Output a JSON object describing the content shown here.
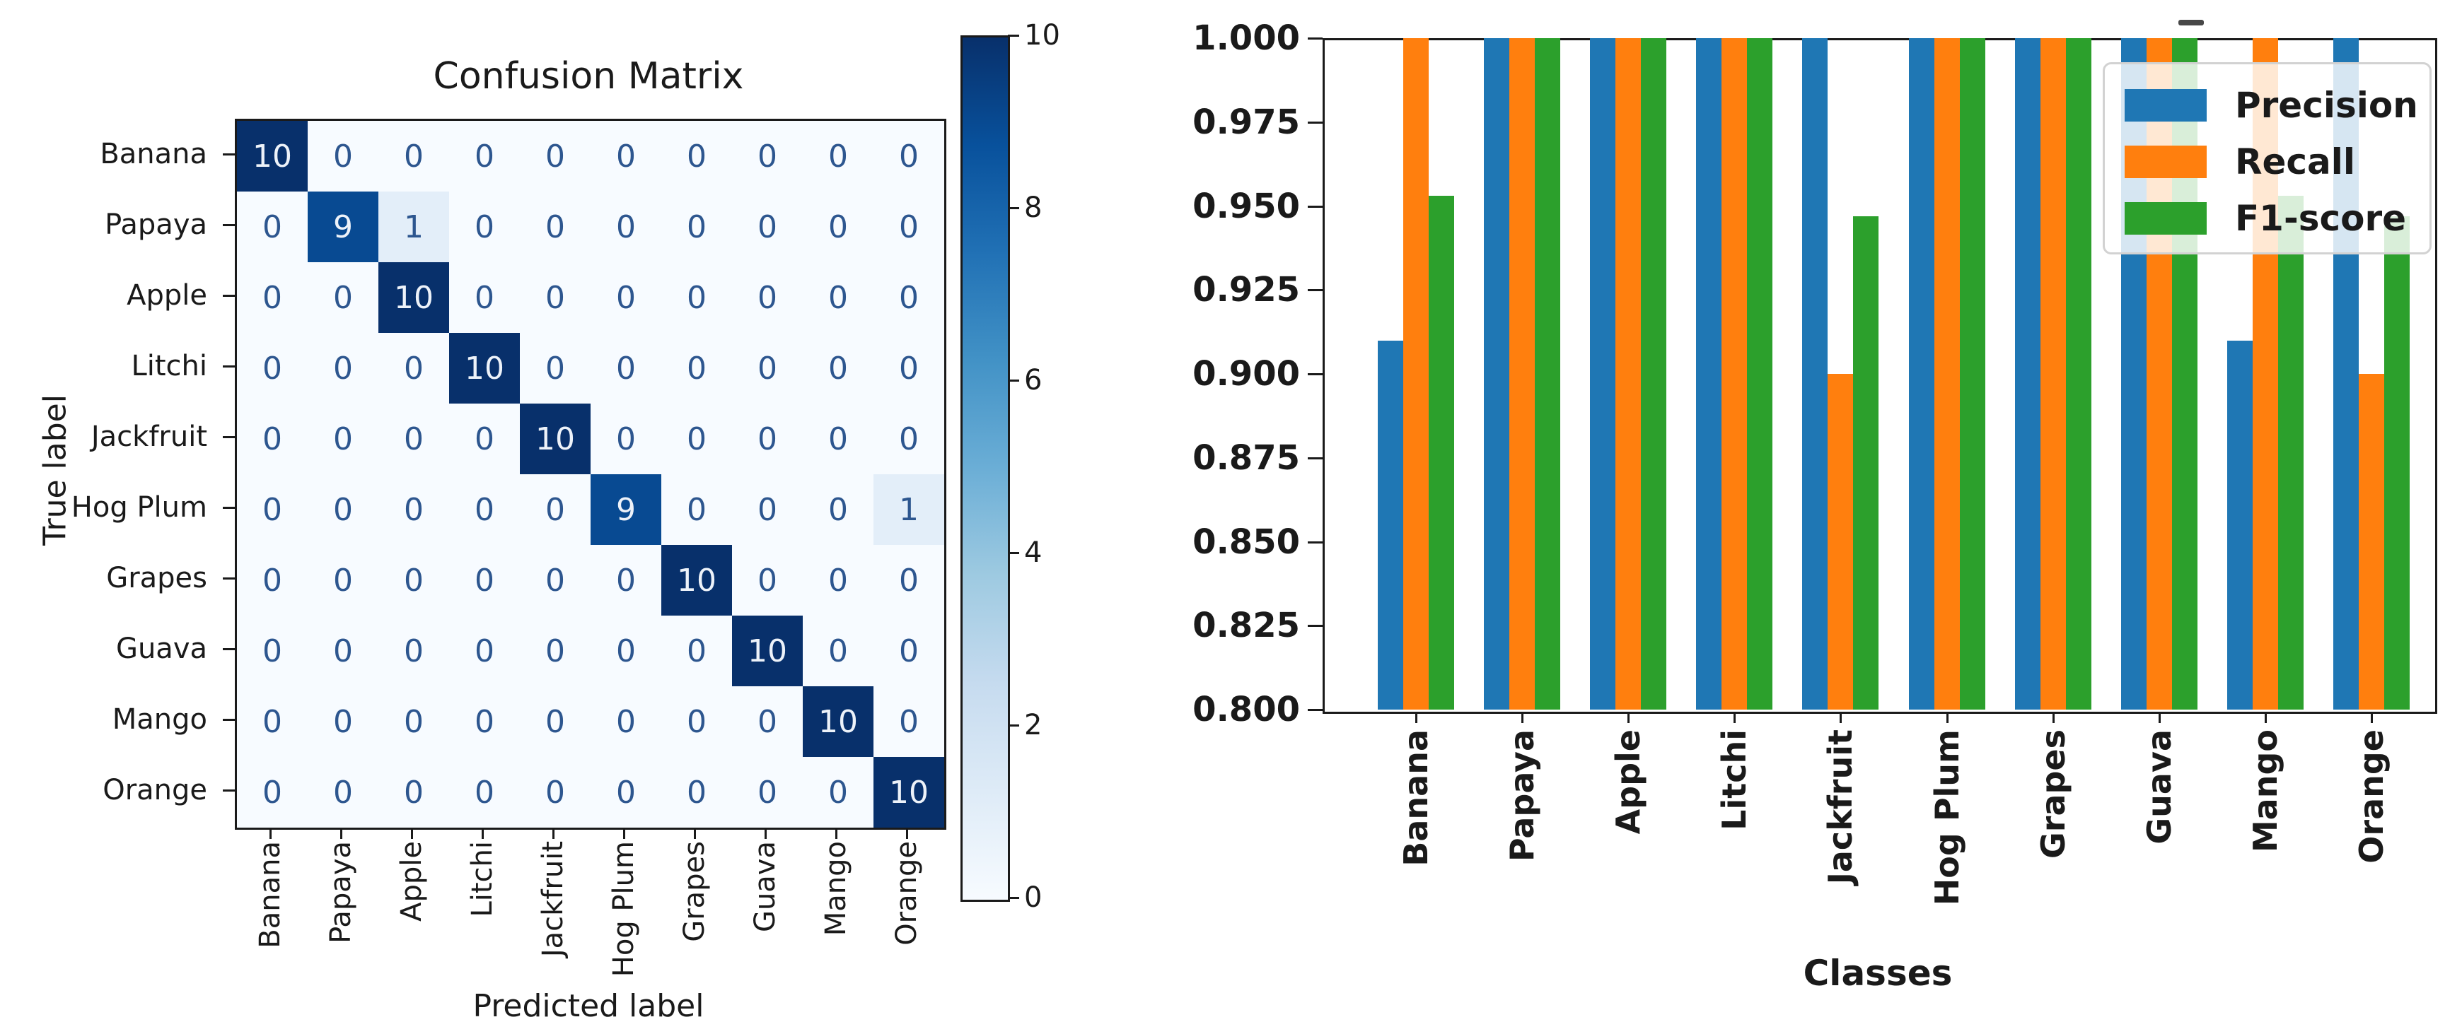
{
  "chart_data": [
    {
      "type": "heatmap",
      "title": "Confusion Matrix",
      "xlabel": "Predicted label",
      "ylabel": "True label",
      "classes": [
        "Banana",
        "Papaya",
        "Apple",
        "Litchi",
        "Jackfruit",
        "Hog Plum",
        "Grapes",
        "Guava",
        "Mango",
        "Orange"
      ],
      "matrix": [
        [
          10,
          0,
          0,
          0,
          0,
          0,
          0,
          0,
          0,
          0
        ],
        [
          0,
          9,
          1,
          0,
          0,
          0,
          0,
          0,
          0,
          0
        ],
        [
          0,
          0,
          10,
          0,
          0,
          0,
          0,
          0,
          0,
          0
        ],
        [
          0,
          0,
          0,
          10,
          0,
          0,
          0,
          0,
          0,
          0
        ],
        [
          0,
          0,
          0,
          0,
          10,
          0,
          0,
          0,
          0,
          0
        ],
        [
          0,
          0,
          0,
          0,
          0,
          9,
          0,
          0,
          0,
          1
        ],
        [
          0,
          0,
          0,
          0,
          0,
          0,
          10,
          0,
          0,
          0
        ],
        [
          0,
          0,
          0,
          0,
          0,
          0,
          0,
          10,
          0,
          0
        ],
        [
          0,
          0,
          0,
          0,
          0,
          0,
          0,
          0,
          10,
          0
        ],
        [
          0,
          0,
          0,
          0,
          0,
          0,
          0,
          0,
          0,
          10
        ]
      ],
      "vmin": 0,
      "vmax": 10,
      "colormap": "Blues",
      "colorbar_ticks": [
        0,
        2,
        4,
        6,
        8,
        10
      ],
      "grid": false
    },
    {
      "type": "bar",
      "xlabel": "Classes",
      "categories": [
        "Banana",
        "Papaya",
        "Apple",
        "Litchi",
        "Jackfruit",
        "Hog Plum",
        "Grapes",
        "Guava",
        "Mango",
        "Orange"
      ],
      "series": [
        {
          "name": "Precision",
          "color": "#1f77b4",
          "values": [
            0.91,
            1.0,
            1.0,
            1.0,
            1.0,
            1.0,
            1.0,
            1.0,
            0.91,
            1.0
          ]
        },
        {
          "name": "Recall",
          "color": "#ff7f0e",
          "values": [
            1.0,
            1.0,
            1.0,
            1.0,
            0.9,
            1.0,
            1.0,
            1.0,
            1.0,
            0.9
          ]
        },
        {
          "name": "F1-score",
          "color": "#2ca02c",
          "values": [
            0.953,
            1.0,
            1.0,
            1.0,
            0.947,
            1.0,
            1.0,
            1.0,
            0.953,
            0.947
          ]
        }
      ],
      "ylim": [
        0.8,
        1.0
      ],
      "ytick_labels": [
        "1.000",
        "0.975",
        "0.950",
        "0.925",
        "0.900",
        "0.875",
        "0.850",
        "0.825",
        "0.800"
      ],
      "yticks": [
        1.0,
        0.975,
        0.95,
        0.925,
        0.9,
        0.875,
        0.85,
        0.825,
        0.8
      ],
      "legend": {
        "position": "upper right",
        "entries": [
          "Precision",
          "Recall",
          "F1-score"
        ]
      },
      "grid": false
    }
  ]
}
